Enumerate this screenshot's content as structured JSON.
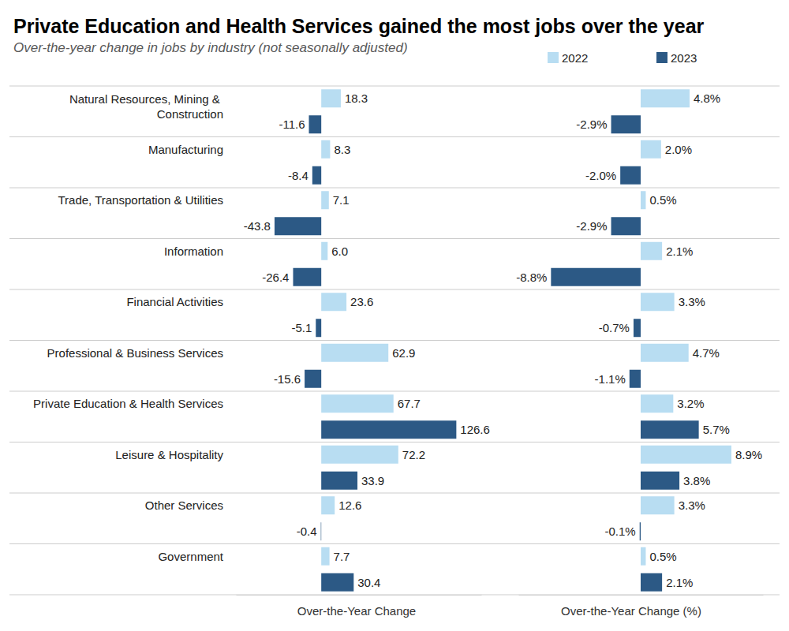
{
  "chart_data": [
    {
      "type": "bar",
      "orientation": "horizontal",
      "title": "Private Education and Health Services gained the most jobs over the year",
      "subtitle": "Over-the-year change in jobs by industry (not seasonally adjusted)",
      "x_label": "Over-the-Year Change",
      "categories": [
        "Natural Resources, Mining & Construction",
        "Manufacturing",
        "Trade, Transportation & Utilities",
        "Information",
        "Financial Activities",
        "Professional & Business Services",
        "Private Education & Health Services",
        "Leisure & Hospitality",
        "Other Services",
        "Government"
      ],
      "series": [
        {
          "name": "2022",
          "color": "#b8ddf2",
          "values": [
            18.3,
            8.3,
            7.1,
            6.0,
            23.6,
            62.9,
            67.7,
            72.2,
            12.6,
            7.7
          ],
          "value_labels": [
            "18.3",
            "8.3",
            "7.1",
            "6.0",
            "23.6",
            "62.9",
            "67.7",
            "72.2",
            "12.6",
            "7.7"
          ]
        },
        {
          "name": "2023",
          "color": "#2c5985",
          "values": [
            -11.6,
            -8.4,
            -43.8,
            -26.4,
            -5.1,
            -15.6,
            126.6,
            33.9,
            -0.4,
            30.4
          ]
        }
      ],
      "xlim": [
        -80,
        150
      ],
      "data_labels": true,
      "legend": "top right",
      "tick_labels": "y"
    },
    {
      "type": "bar",
      "orientation": "horizontal",
      "x_label": "Over-the-Year Change (%)",
      "series": [
        {
          "color": "#b8ddf2",
          "values": [
            4.8,
            2.0,
            0.5,
            2.1,
            3.3,
            4.7,
            3.2,
            8.9,
            3.3,
            0.5
          ],
          "value_labels": [
            "4.8%",
            "2.0%",
            "0.5%",
            "2.1%",
            "3.3%",
            "4.7%",
            "3.2%",
            "8.9%",
            "3.3%",
            "0.5%"
          ]
        },
        {
          "color": "#2c5985",
          "values": [
            -2.9,
            -2.0,
            -2.9,
            -8.8,
            -0.7,
            -1.1,
            5.7,
            3.8,
            -0.1,
            2.1
          ],
          "value_labels": [
            "-2.9%",
            "-2.0%",
            "-2.9%",
            "-8.8%",
            "-0.7%",
            "-1.1%",
            "5.7%",
            "3.8%",
            "-0.1%",
            "2.1%"
          ]
        }
      ],
      "xlim": [
        -12,
        12
      ],
      "data_labels": true,
      "tick_labels": false
    }
  ]
}
